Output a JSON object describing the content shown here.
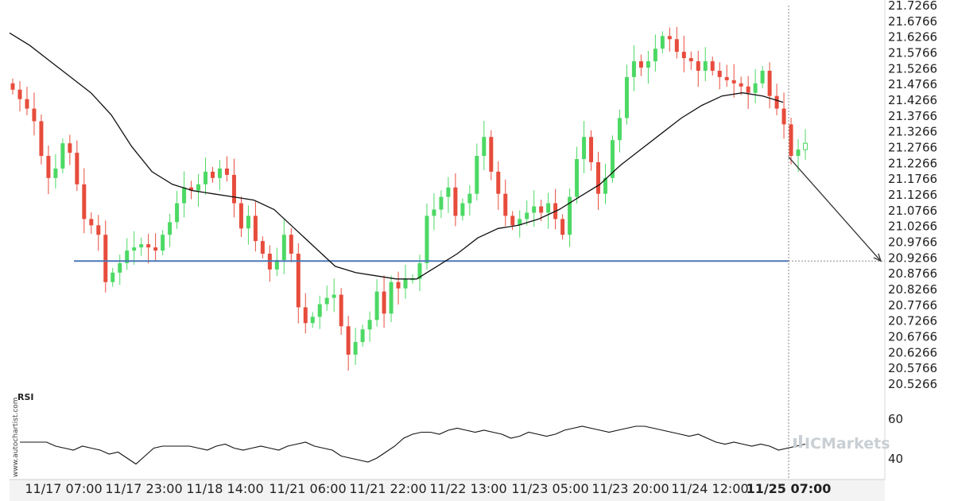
{
  "chart_data": {
    "type": "candlestick",
    "price_axis": {
      "ticks": [
        "21.7266",
        "21.6766",
        "21.6266",
        "21.5766",
        "21.5266",
        "21.4766",
        "21.4266",
        "21.3766",
        "21.3266",
        "21.2766",
        "21.2266",
        "21.1766",
        "21.1266",
        "21.0766",
        "21.0266",
        "20.9766",
        "20.9266",
        "20.8766",
        "20.8266",
        "20.7766",
        "20.7266",
        "20.6766",
        "20.6266",
        "20.5766",
        "20.5266"
      ],
      "range": [
        20.5066,
        21.7366
      ]
    },
    "x_axis": {
      "ticks": [
        "11/17 07:00",
        "11/17 23:00",
        "11/18 14:00",
        "11/21 06:00",
        "11/21 22:00",
        "11/22 13:00",
        "11/23 05:00",
        "11/23 20:00",
        "11/24 12:00",
        "11/25 07:00"
      ],
      "highlighted": "11/25 07:00"
    },
    "support_level": 20.9166,
    "projection": {
      "from_price": 21.2466,
      "to_price": 20.9166
    },
    "candles_close": [
      21.46,
      21.43,
      21.4,
      21.36,
      21.25,
      21.18,
      21.21,
      21.29,
      21.26,
      21.16,
      21.05,
      21.03,
      21.0,
      20.85,
      20.88,
      20.91,
      20.95,
      20.96,
      20.97,
      20.96,
      20.95,
      21.0,
      21.04,
      21.1,
      21.15,
      21.14,
      21.16,
      21.2,
      21.18,
      21.21,
      21.19,
      21.1,
      21.02,
      21.06,
      20.98,
      20.94,
      20.89,
      20.92,
      21.0,
      20.94,
      20.77,
      20.72,
      20.74,
      20.78,
      20.8,
      20.81,
      20.71,
      20.62,
      20.66,
      20.7,
      20.73,
      20.82,
      20.75,
      20.85,
      20.83,
      20.86,
      20.86,
      20.91,
      21.06,
      21.08,
      21.12,
      21.15,
      21.06,
      21.1,
      21.13,
      21.25,
      21.31,
      21.2,
      21.13,
      21.06,
      21.03,
      21.05,
      21.07,
      21.09,
      21.07,
      21.1,
      21.05,
      21.0,
      21.12,
      21.24,
      21.31,
      21.23,
      21.13,
      21.18,
      21.3,
      21.37,
      21.5,
      21.55,
      21.53,
      21.55,
      21.59,
      21.63,
      21.62,
      21.58,
      21.56,
      21.55,
      21.52,
      21.55,
      21.52,
      21.5,
      21.49,
      21.48,
      21.47,
      21.45,
      21.48,
      21.52,
      21.44,
      21.4,
      21.35,
      21.25,
      21.27,
      21.29
    ],
    "moving_average": {
      "start": 21.64,
      "points": [
        21.64,
        21.6,
        21.55,
        21.5,
        21.45,
        21.38,
        21.28,
        21.2,
        21.16,
        21.14,
        21.13,
        21.12,
        21.11,
        21.08,
        21.02,
        20.96,
        20.9,
        20.88,
        20.87,
        20.86,
        20.86,
        20.9,
        20.94,
        20.99,
        21.02,
        21.03,
        21.05,
        21.08,
        21.12,
        21.16,
        21.22,
        21.27,
        21.32,
        21.37,
        21.41,
        21.44,
        21.45,
        21.44,
        21.42
      ]
    },
    "rsi": {
      "label": "RSI",
      "ticks": [
        "60",
        "40"
      ],
      "range": [
        30,
        70
      ],
      "values": [
        48,
        48,
        48,
        48,
        46,
        45,
        44,
        46,
        45,
        44,
        42,
        43,
        40,
        37,
        41,
        45,
        46,
        46,
        46,
        46,
        45,
        44,
        46,
        47,
        45,
        44,
        45,
        46,
        45,
        44,
        46,
        47,
        48,
        46,
        45,
        44,
        41,
        40,
        39,
        38,
        40,
        43,
        46,
        50,
        52,
        53,
        53,
        52,
        54,
        55,
        54,
        53,
        54,
        53,
        52,
        50,
        51,
        53,
        52,
        51,
        52,
        54,
        55,
        56,
        55,
        54,
        53,
        54,
        55,
        56,
        56,
        55,
        54,
        53,
        52,
        51,
        52,
        50,
        48,
        47,
        48,
        47,
        46,
        47,
        46,
        44,
        45,
        46,
        47
      ],
      "title": ""
    }
  },
  "watermark": {
    "side": "www.autochartist.com",
    "brand": "ICMarkets"
  },
  "colors": {
    "bull": "#4cd964",
    "bear": "#e74c3c",
    "support": "#4a78b8",
    "ma": "#111111",
    "grid": "#e8e8e8"
  }
}
